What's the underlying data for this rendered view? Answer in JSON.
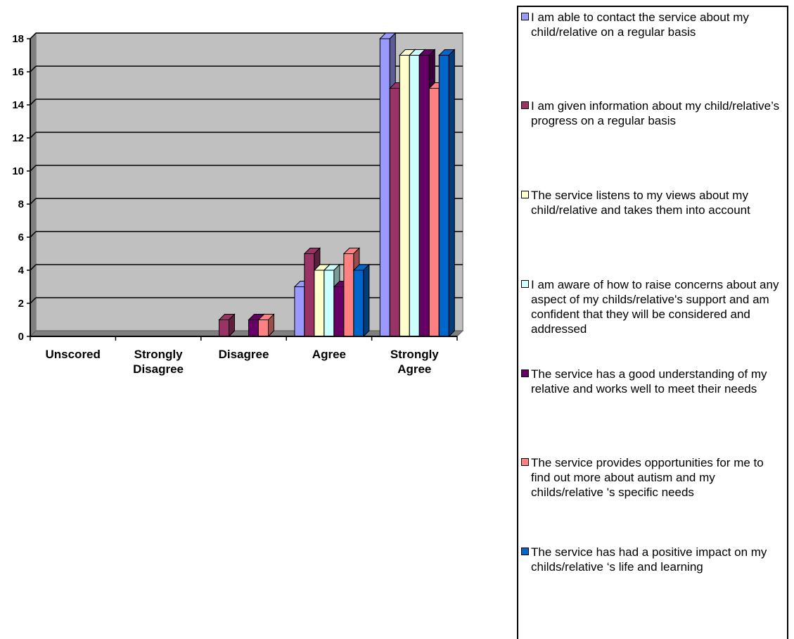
{
  "chart_data": {
    "type": "bar",
    "title": "",
    "xlabel": "",
    "ylabel": "",
    "ylim": [
      0,
      18
    ],
    "yticks": [
      0,
      2,
      4,
      6,
      8,
      10,
      12,
      14,
      16,
      18
    ],
    "grid": true,
    "legend_position": "right",
    "categories": [
      "Unscored",
      "Strongly Disagree",
      "Disagree",
      "Agree",
      "Strongly Agree"
    ],
    "series": [
      {
        "name": "I am able to contact the service about my child/relative on a regular basis",
        "color": "#9999FF",
        "values": [
          0,
          0,
          0,
          3,
          18
        ]
      },
      {
        "name": "I am given information about my child/relative’s progress on a regular basis",
        "color": "#993366",
        "values": [
          0,
          0,
          1,
          5,
          15
        ]
      },
      {
        "name": "The service listens to my views about my child/relative and takes them into account",
        "color": "#FFFFCC",
        "values": [
          0,
          0,
          0,
          4,
          17
        ]
      },
      {
        "name": "I am aware of how to raise concerns about any aspect of my childs/relative's support and am confident that they will be considered and addressed",
        "color": "#CCFFFF",
        "values": [
          0,
          0,
          0,
          4,
          17
        ]
      },
      {
        "name": "The service has a good understanding of my relative and works well to meet their needs",
        "color": "#660066",
        "values": [
          0,
          0,
          1,
          3,
          17
        ]
      },
      {
        "name": "The service provides opportunities for me to find out more about autism and my childs/relative 's specific needs",
        "color": "#FF8080",
        "values": [
          0,
          0,
          1,
          5,
          15
        ]
      },
      {
        "name": "The service has had a positive impact on my childs/relative ‘s life and learning",
        "color": "#0066CC",
        "values": [
          0,
          0,
          0,
          4,
          17
        ]
      }
    ]
  },
  "colors": {
    "plot_background": "#C0C0C0",
    "floor": "#808080"
  }
}
